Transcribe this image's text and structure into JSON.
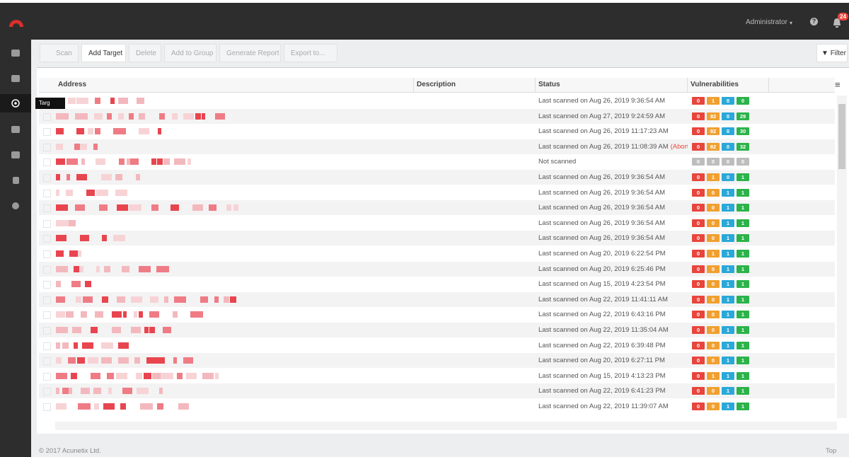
{
  "header": {
    "user": "Administrator",
    "notifications": "24"
  },
  "toolbar": {
    "buttons": [
      "Scan",
      "Add Target",
      "Delete",
      "Add to Group",
      "Generate Report",
      "Export to..."
    ],
    "filter": "Filter"
  },
  "tooltip": "Targ",
  "table": {
    "columns": [
      "Address",
      "Description",
      "Status",
      "Vulnerabilities"
    ],
    "severity_colors": [
      "#e8453c",
      "#f0a030",
      "#2aa8d8",
      "#2cb34a"
    ],
    "rows": [
      {
        "status": "Last scanned on Aug 26, 2019 9:36:54 AM",
        "vulns": [
          0,
          1,
          0,
          0
        ]
      },
      {
        "status": "Last scanned on Aug 27, 2019 9:24:59 AM",
        "vulns": [
          0,
          82,
          0,
          29
        ]
      },
      {
        "status": "Last scanned on Aug 26, 2019 11:17:23 AM",
        "vulns": [
          0,
          82,
          0,
          30
        ]
      },
      {
        "status": "Last scanned on Aug 26, 2019 11:08:39 AM",
        "note": "(Aborted)",
        "vulns": [
          0,
          82,
          0,
          32
        ]
      },
      {
        "status": "Not scanned",
        "vulns": [
          0,
          0,
          0,
          0
        ],
        "greyed": true
      },
      {
        "status": "Last scanned on Aug 26, 2019 9:36:54 AM",
        "vulns": [
          0,
          1,
          0,
          1
        ]
      },
      {
        "status": "Last scanned on Aug 26, 2019 9:36:54 AM",
        "vulns": [
          0,
          0,
          1,
          1
        ]
      },
      {
        "status": "Last scanned on Aug 26, 2019 9:36:54 AM",
        "vulns": [
          0,
          0,
          1,
          1
        ]
      },
      {
        "status": "Last scanned on Aug 26, 2019 9:36:54 AM",
        "vulns": [
          0,
          0,
          1,
          1
        ]
      },
      {
        "status": "Last scanned on Aug 26, 2019 9:36:54 AM",
        "vulns": [
          0,
          0,
          1,
          1
        ]
      },
      {
        "status": "Last scanned on Aug 20, 2019 6:22:54 PM",
        "vulns": [
          0,
          1,
          1,
          1
        ]
      },
      {
        "status": "Last scanned on Aug 20, 2019 6:25:46 PM",
        "vulns": [
          0,
          0,
          1,
          1
        ]
      },
      {
        "status": "Last scanned on Aug 15, 2019 4:23:54 PM",
        "vulns": [
          0,
          0,
          1,
          1
        ]
      },
      {
        "status": "Last scanned on Aug 22, 2019 11:41:11 AM",
        "vulns": [
          0,
          0,
          1,
          1
        ]
      },
      {
        "status": "Last scanned on Aug 22, 2019 6:43:16 PM",
        "vulns": [
          0,
          0,
          1,
          1
        ]
      },
      {
        "status": "Last scanned on Aug 22, 2019 11:35:04 AM",
        "vulns": [
          0,
          0,
          1,
          1
        ]
      },
      {
        "status": "Last scanned on Aug 22, 2019 6:39:48 PM",
        "vulns": [
          0,
          0,
          1,
          1
        ]
      },
      {
        "status": "Last scanned on Aug 20, 2019 6:27:11 PM",
        "vulns": [
          0,
          0,
          1,
          1
        ]
      },
      {
        "status": "Last scanned on Aug 15, 2019 4:13:23 PM",
        "vulns": [
          0,
          1,
          1,
          1
        ]
      },
      {
        "status": "Last scanned on Aug 22, 2019 6:41:23 PM",
        "vulns": [
          0,
          0,
          1,
          1
        ]
      },
      {
        "status": "Last scanned on Aug 22, 2019 11:39:07 AM",
        "vulns": [
          0,
          0,
          1,
          1
        ]
      }
    ]
  },
  "footer": {
    "copyright": "© 2017 Acunetix Ltd.",
    "top": "Top"
  }
}
